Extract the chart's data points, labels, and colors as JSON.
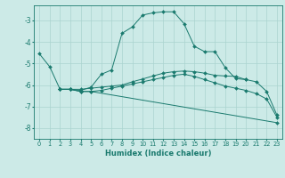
{
  "xlabel": "Humidex (Indice chaleur)",
  "background_color": "#cceae7",
  "grid_color": "#aad4d0",
  "line_color": "#1a7a6e",
  "xlim": [
    -0.5,
    23.5
  ],
  "ylim": [
    -8.5,
    -2.3
  ],
  "yticks": [
    -8,
    -7,
    -6,
    -5,
    -4,
    -3
  ],
  "xticks": [
    0,
    1,
    2,
    3,
    4,
    5,
    6,
    7,
    8,
    9,
    10,
    11,
    12,
    13,
    14,
    15,
    16,
    17,
    18,
    19,
    20,
    21,
    22,
    23
  ],
  "series": [
    {
      "x": [
        0,
        1,
        2,
        3,
        4,
        5,
        6,
        7,
        8,
        9,
        10,
        11,
        12,
        13,
        14,
        15,
        16,
        17,
        18,
        19,
        20
      ],
      "y": [
        -4.55,
        -5.15,
        -6.2,
        -6.2,
        -6.25,
        -6.1,
        -5.5,
        -5.3,
        -3.6,
        -3.3,
        -2.75,
        -2.65,
        -2.6,
        -2.6,
        -3.15,
        -4.2,
        -4.45,
        -4.45,
        -5.2,
        -5.7,
        -5.75
      ]
    },
    {
      "x": [
        2,
        3,
        4,
        5,
        6,
        7,
        8,
        9,
        10,
        11,
        12,
        13,
        14,
        15,
        16,
        17,
        18,
        19,
        20,
        21,
        22,
        23
      ],
      "y": [
        -6.2,
        -6.2,
        -6.2,
        -6.15,
        -6.1,
        -6.05,
        -6.0,
        -5.85,
        -5.72,
        -5.58,
        -5.45,
        -5.38,
        -5.35,
        -5.38,
        -5.45,
        -5.55,
        -5.58,
        -5.6,
        -5.75,
        -5.85,
        -6.3,
        -7.4
      ]
    },
    {
      "x": [
        2,
        3,
        4,
        5,
        6,
        7,
        8,
        9,
        10,
        11,
        12,
        13,
        14,
        15,
        16,
        17,
        18,
        19,
        20,
        21,
        22,
        23
      ],
      "y": [
        -6.2,
        -6.2,
        -6.3,
        -6.3,
        -6.25,
        -6.15,
        -6.05,
        -5.95,
        -5.85,
        -5.75,
        -5.65,
        -5.55,
        -5.5,
        -5.6,
        -5.75,
        -5.9,
        -6.05,
        -6.15,
        -6.25,
        -6.4,
        -6.65,
        -7.5
      ]
    },
    {
      "x": [
        2,
        3,
        4,
        5,
        23
      ],
      "y": [
        -6.2,
        -6.2,
        -6.3,
        -6.3,
        -7.75
      ]
    }
  ]
}
